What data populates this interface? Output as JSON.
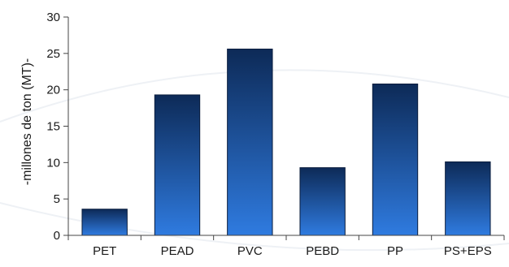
{
  "chart_data": {
    "type": "bar",
    "title": "",
    "xlabel": "",
    "ylabel": "-millones de ton (MT)-",
    "categories": [
      "PET",
      "PEAD",
      "PVC",
      "PEBD",
      "PP",
      "PS+EPS"
    ],
    "values": [
      3.6,
      19.3,
      25.6,
      9.3,
      20.8,
      10.1
    ],
    "ylim": [
      0,
      30
    ],
    "yticks": [
      0,
      5,
      10,
      15,
      20,
      25,
      30
    ],
    "grid": false,
    "legend": "none",
    "colors": {
      "bar_top": "#0d2a57",
      "bar_bottom": "#2f7be0",
      "axis": "#444444",
      "bar_border": "#0a1d3d"
    }
  }
}
